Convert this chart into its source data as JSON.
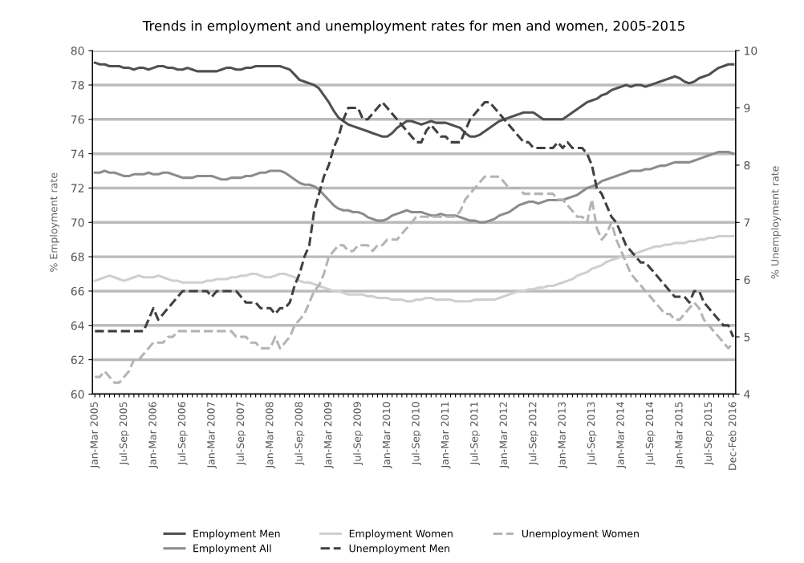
{
  "chart_data": {
    "type": "line",
    "title": "Trends in employment and unemployment rates for men and women, 2005-2015",
    "ylabel": "% Employment rate",
    "y2label": "% Unemployment rate",
    "categories": [
      "Jan-Mar 2005",
      null,
      null,
      null,
      null,
      null,
      "Jul-Sep 2005",
      null,
      null,
      null,
      null,
      null,
      "Jan-Mar 2006",
      null,
      null,
      null,
      null,
      null,
      "Jul-Sep 2006",
      null,
      null,
      null,
      null,
      null,
      "Jan-Mar 2007",
      null,
      null,
      null,
      null,
      null,
      "Jul-Sep 2007",
      null,
      null,
      null,
      null,
      null,
      "Jan-Mar 2008",
      null,
      null,
      null,
      null,
      null,
      "Jul-Sep 2008",
      null,
      null,
      null,
      null,
      null,
      "Jan-Mar 2009",
      null,
      null,
      null,
      null,
      null,
      "Jul-Sep 2009",
      null,
      null,
      null,
      null,
      null,
      "Jan-Mar 2010",
      null,
      null,
      null,
      null,
      null,
      "Jul-Sep 2010",
      null,
      null,
      null,
      null,
      null,
      "Jan-Mar 2011",
      null,
      null,
      null,
      null,
      null,
      "Jul-Sep 2011",
      null,
      null,
      null,
      null,
      null,
      "Jan-Mar 2012",
      null,
      null,
      null,
      null,
      null,
      "Jul-Sep 2012",
      null,
      null,
      null,
      null,
      null,
      "Jan-Mar 2013",
      null,
      null,
      null,
      null,
      null,
      "Jul-Sep 2013",
      null,
      null,
      null,
      null,
      null,
      "Jan-Mar 2014",
      null,
      null,
      null,
      null,
      null,
      "Jul-Sep 2014",
      null,
      null,
      null,
      null,
      null,
      "Jan-Mar 2015",
      null,
      null,
      null,
      null,
      null,
      "Jul-Sep 2015",
      null,
      null,
      null,
      null,
      "Dec-Feb 2016"
    ],
    "ylim": [
      60,
      80
    ],
    "yticks": [
      60,
      62,
      64,
      66,
      68,
      70,
      72,
      74,
      76,
      78,
      80
    ],
    "y2lim": [
      4,
      10
    ],
    "y2ticks": [
      4,
      5,
      6,
      7,
      8,
      9,
      10
    ],
    "grid": "y",
    "legend": "bottom",
    "series": [
      {
        "name": "Employment Men",
        "color": "#505050",
        "line_style": "solid",
        "values": [
          79.3,
          79.2,
          79.2,
          79.1,
          79.1,
          79.1,
          79.0,
          79.0,
          78.9,
          79.0,
          79.0,
          78.9,
          79.0,
          79.1,
          79.1,
          79.0,
          79.0,
          78.9,
          78.9,
          79.0,
          78.9,
          78.8,
          78.8,
          78.8,
          78.8,
          78.8,
          78.9,
          79.0,
          79.0,
          78.9,
          78.9,
          79.0,
          79.0,
          79.1,
          79.1,
          79.1,
          79.1,
          79.1,
          79.1,
          79.0,
          78.9,
          78.6,
          78.3,
          78.2,
          78.1,
          78.0,
          77.8,
          77.4,
          77.0,
          76.5,
          76.1,
          75.9,
          75.7,
          75.6,
          75.5,
          75.4,
          75.3,
          75.2,
          75.1,
          75.0,
          75.0,
          75.2,
          75.5,
          75.7,
          75.9,
          75.9,
          75.8,
          75.7,
          75.8,
          75.9,
          75.8,
          75.8,
          75.8,
          75.7,
          75.6,
          75.5,
          75.2,
          75.0,
          75.0,
          75.1,
          75.3,
          75.5,
          75.7,
          75.9,
          76.0,
          76.1,
          76.2,
          76.3,
          76.4,
          76.4,
          76.4,
          76.2,
          76.0,
          76.0,
          76.0,
          76.0,
          76.0,
          76.2,
          76.4,
          76.6,
          76.8,
          77.0,
          77.1,
          77.2,
          77.4,
          77.5,
          77.7,
          77.8,
          77.9,
          78.0,
          77.9,
          78.0,
          78.0,
          77.9,
          78.0,
          78.1,
          78.2,
          78.3,
          78.4,
          78.5,
          78.4,
          78.2,
          78.1,
          78.2,
          78.4,
          78.5,
          78.6,
          78.8,
          79.0,
          79.1,
          79.2,
          79.2
        ]
      },
      {
        "name": "Employment All",
        "color": "#8c8c8c",
        "line_style": "solid",
        "values": [
          72.9,
          72.9,
          73.0,
          72.9,
          72.9,
          72.8,
          72.7,
          72.7,
          72.8,
          72.8,
          72.8,
          72.9,
          72.8,
          72.8,
          72.9,
          72.9,
          72.8,
          72.7,
          72.6,
          72.6,
          72.6,
          72.7,
          72.7,
          72.7,
          72.7,
          72.6,
          72.5,
          72.5,
          72.6,
          72.6,
          72.6,
          72.7,
          72.7,
          72.8,
          72.9,
          72.9,
          73.0,
          73.0,
          73.0,
          72.9,
          72.7,
          72.5,
          72.3,
          72.2,
          72.2,
          72.1,
          71.9,
          71.6,
          71.3,
          71.0,
          70.8,
          70.7,
          70.7,
          70.6,
          70.6,
          70.5,
          70.3,
          70.2,
          70.1,
          70.1,
          70.2,
          70.4,
          70.5,
          70.6,
          70.7,
          70.6,
          70.6,
          70.6,
          70.5,
          70.4,
          70.4,
          70.5,
          70.4,
          70.4,
          70.4,
          70.3,
          70.2,
          70.1,
          70.1,
          70.0,
          70.0,
          70.1,
          70.2,
          70.4,
          70.5,
          70.6,
          70.8,
          71.0,
          71.1,
          71.2,
          71.2,
          71.1,
          71.2,
          71.3,
          71.3,
          71.3,
          71.3,
          71.4,
          71.5,
          71.6,
          71.8,
          72.0,
          72.1,
          72.2,
          72.4,
          72.5,
          72.6,
          72.7,
          72.8,
          72.9,
          73.0,
          73.0,
          73.0,
          73.1,
          73.1,
          73.2,
          73.3,
          73.3,
          73.4,
          73.5,
          73.5,
          73.5,
          73.5,
          73.6,
          73.7,
          73.8,
          73.9,
          74.0,
          74.1,
          74.1,
          74.1,
          74.0
        ]
      },
      {
        "name": "Employment Women",
        "color": "#cfcfcf",
        "line_style": "solid",
        "values": [
          66.6,
          66.7,
          66.8,
          66.9,
          66.8,
          66.7,
          66.6,
          66.7,
          66.8,
          66.9,
          66.8,
          66.8,
          66.8,
          66.9,
          66.8,
          66.7,
          66.6,
          66.6,
          66.5,
          66.5,
          66.5,
          66.5,
          66.5,
          66.6,
          66.6,
          66.7,
          66.7,
          66.7,
          66.8,
          66.8,
          66.9,
          66.9,
          67.0,
          67.0,
          66.9,
          66.8,
          66.8,
          66.9,
          67.0,
          67.0,
          66.9,
          66.8,
          66.6,
          66.5,
          66.5,
          66.4,
          66.3,
          66.2,
          66.1,
          66.0,
          66.0,
          65.9,
          65.8,
          65.8,
          65.8,
          65.8,
          65.7,
          65.7,
          65.6,
          65.6,
          65.6,
          65.5,
          65.5,
          65.5,
          65.4,
          65.4,
          65.5,
          65.5,
          65.6,
          65.6,
          65.5,
          65.5,
          65.5,
          65.5,
          65.4,
          65.4,
          65.4,
          65.4,
          65.5,
          65.5,
          65.5,
          65.5,
          65.5,
          65.6,
          65.7,
          65.8,
          65.9,
          66.0,
          66.0,
          66.1,
          66.1,
          66.2,
          66.2,
          66.3,
          66.3,
          66.4,
          66.5,
          66.6,
          66.7,
          66.9,
          67.0,
          67.1,
          67.3,
          67.4,
          67.5,
          67.7,
          67.8,
          67.9,
          68.0,
          68.0,
          68.1,
          68.2,
          68.3,
          68.4,
          68.5,
          68.6,
          68.6,
          68.7,
          68.7,
          68.8,
          68.8,
          68.8,
          68.9,
          68.9,
          69.0,
          69.0,
          69.1,
          69.1,
          69.2,
          69.2,
          69.2,
          69.2
        ]
      },
      {
        "name": "Unemployment Men",
        "color": "#404040",
        "line_style": "dashed",
        "axis": "y2",
        "values": [
          5.1,
          5.1,
          5.1,
          5.1,
          5.1,
          5.1,
          5.1,
          5.1,
          5.1,
          5.1,
          5.1,
          5.3,
          5.5,
          5.3,
          5.4,
          5.5,
          5.6,
          5.7,
          5.8,
          5.8,
          5.8,
          5.8,
          5.8,
          5.8,
          5.7,
          5.8,
          5.8,
          5.8,
          5.8,
          5.8,
          5.7,
          5.6,
          5.6,
          5.6,
          5.5,
          5.5,
          5.5,
          5.4,
          5.5,
          5.5,
          5.6,
          5.9,
          6.1,
          6.4,
          6.6,
          7.2,
          7.5,
          7.8,
          8.0,
          8.3,
          8.5,
          8.8,
          9.0,
          9.0,
          9.0,
          8.8,
          8.8,
          8.9,
          9.0,
          9.1,
          9.0,
          8.9,
          8.8,
          8.7,
          8.6,
          8.5,
          8.4,
          8.4,
          8.6,
          8.7,
          8.6,
          8.5,
          8.5,
          8.4,
          8.4,
          8.4,
          8.6,
          8.8,
          8.9,
          9.0,
          9.1,
          9.1,
          9.0,
          8.9,
          8.8,
          8.7,
          8.6,
          8.5,
          8.4,
          8.4,
          8.3,
          8.3,
          8.3,
          8.3,
          8.3,
          8.4,
          8.3,
          8.4,
          8.3,
          8.3,
          8.3,
          8.2,
          8.0,
          7.6,
          7.5,
          7.3,
          7.1,
          7.0,
          6.8,
          6.6,
          6.5,
          6.4,
          6.3,
          6.3,
          6.2,
          6.1,
          6.0,
          5.9,
          5.8,
          5.7,
          5.7,
          5.7,
          5.6,
          5.8,
          5.8,
          5.6,
          5.5,
          5.4,
          5.3,
          5.2,
          5.2,
          5.0
        ]
      },
      {
        "name": "Unemployment Women",
        "color": "#b4b4b4",
        "line_style": "dashed",
        "axis": "y2",
        "values": [
          4.3,
          4.3,
          4.4,
          4.3,
          4.2,
          4.2,
          4.3,
          4.4,
          4.6,
          4.6,
          4.7,
          4.8,
          4.9,
          4.9,
          4.9,
          5.0,
          5.0,
          5.1,
          5.1,
          5.1,
          5.1,
          5.1,
          5.1,
          5.1,
          5.1,
          5.1,
          5.1,
          5.1,
          5.1,
          5.0,
          5.0,
          5.0,
          4.9,
          4.9,
          4.8,
          4.8,
          4.8,
          5.0,
          4.8,
          4.9,
          5.0,
          5.2,
          5.3,
          5.4,
          5.6,
          5.8,
          5.9,
          6.1,
          6.4,
          6.5,
          6.6,
          6.6,
          6.5,
          6.5,
          6.6,
          6.6,
          6.6,
          6.5,
          6.6,
          6.6,
          6.7,
          6.7,
          6.7,
          6.8,
          6.9,
          7.0,
          7.1,
          7.1,
          7.1,
          7.1,
          7.1,
          7.1,
          7.1,
          7.1,
          7.1,
          7.2,
          7.4,
          7.5,
          7.6,
          7.7,
          7.8,
          7.8,
          7.8,
          7.8,
          7.7,
          7.6,
          7.6,
          7.6,
          7.5,
          7.5,
          7.5,
          7.5,
          7.5,
          7.5,
          7.5,
          7.4,
          7.4,
          7.3,
          7.2,
          7.1,
          7.1,
          7.0,
          7.4,
          6.9,
          6.7,
          6.8,
          7.0,
          6.7,
          6.5,
          6.3,
          6.1,
          6.0,
          5.9,
          5.8,
          5.7,
          5.6,
          5.5,
          5.4,
          5.4,
          5.3,
          5.3,
          5.4,
          5.5,
          5.6,
          5.5,
          5.3,
          5.2,
          5.1,
          5.0,
          4.9,
          4.8,
          4.9
        ]
      }
    ]
  }
}
